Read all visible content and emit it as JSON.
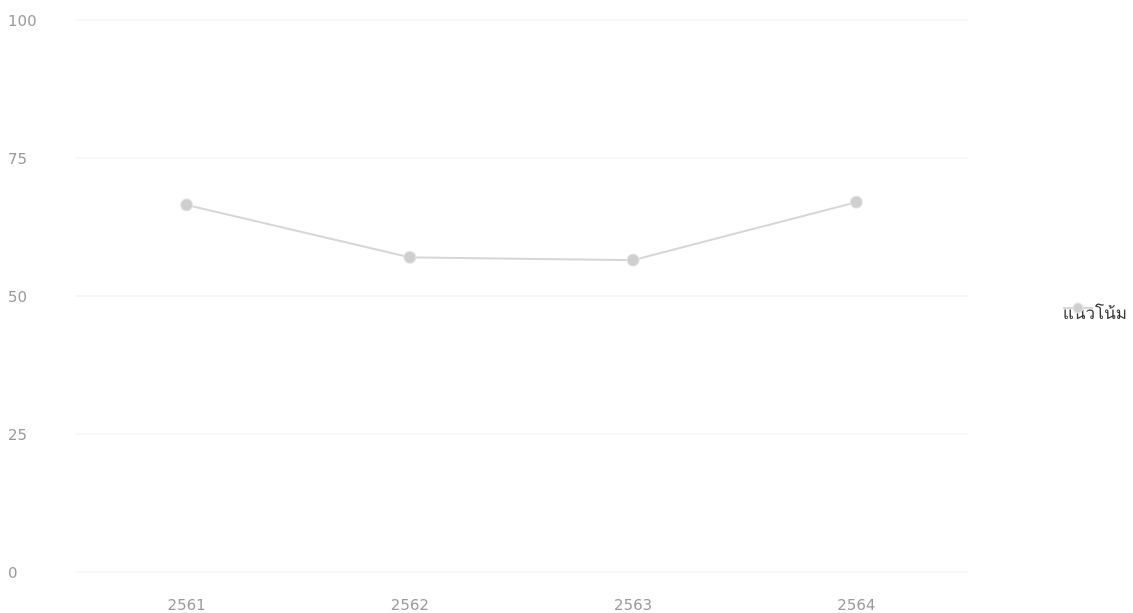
{
  "colors": {
    "line": "#d6d6d6",
    "marker": "#cfcfcf",
    "grid": "#f1f1f1",
    "tick": "#9a9a9a",
    "legend_text": "#333333"
  },
  "chart_data": {
    "type": "line",
    "categories": [
      "2561",
      "2562",
      "2563",
      "2564"
    ],
    "y_ticks": [
      "0",
      "25",
      "50",
      "75",
      "100"
    ],
    "ylim": [
      0,
      100
    ],
    "grid": true,
    "legend_position": "right",
    "series": [
      {
        "name": "แนวโน้ม",
        "values": [
          66.5,
          57,
          56.5,
          67
        ]
      }
    ]
  }
}
